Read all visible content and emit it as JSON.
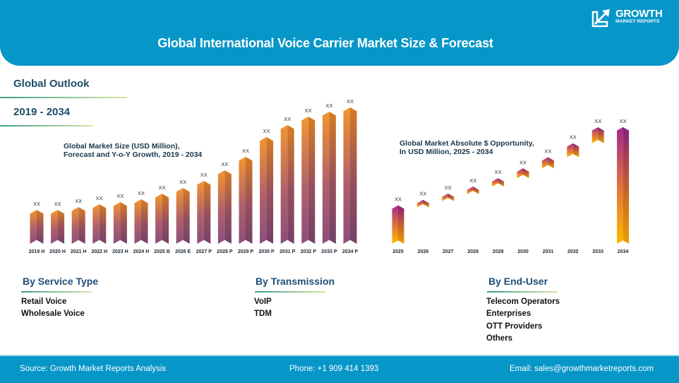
{
  "header": {
    "title": "Global International Voice Carrier Market Size & Forecast",
    "logo_line1": "GROWTH",
    "logo_line2": "MARKET REPORTS",
    "logo_icon": "growth-arrow-icon"
  },
  "outlook": {
    "label": "Global Outlook",
    "period": "2019 - 2034"
  },
  "chart_data": [
    {
      "type": "bar",
      "title": "Global Market Size (USD Million), Forecast and Y-o-Y Growth, 2019 - 2034",
      "title_line1": "Global Market Size (USD Million),",
      "title_line2": "Forecast and Y-o-Y Growth, 2019 - 2034",
      "xlabel": "",
      "ylabel": "",
      "categories": [
        "2019 H",
        "2020 H",
        "2021 H",
        "2022 H",
        "2023 H",
        "2024 H",
        "2025 B",
        "2026 E",
        "2027 P",
        "2028 P",
        "2029 P",
        "2030 P",
        "2031 P",
        "2032 P",
        "2033 P",
        "2034 P"
      ],
      "values": [
        48,
        48,
        52,
        56,
        59,
        63,
        71,
        79,
        89,
        104,
        123,
        151,
        168,
        180,
        187,
        193
      ],
      "value_scale_note": "relative bar heights (values not printed)",
      "data_labels": [
        "XX",
        "XX",
        "XX",
        "XX",
        "XX",
        "XX",
        "XX",
        "XX",
        "XX",
        "XX",
        "XX",
        "XX",
        "XX",
        "XX",
        "XX",
        "XX"
      ],
      "ylim": [
        0,
        200
      ],
      "grid": false,
      "legend": "none",
      "colors": {
        "top": "#f0922c",
        "bottom": "#8e4f7a"
      }
    },
    {
      "type": "bar",
      "subtype": "waterfall",
      "title": "Global Market Absolute $ Opportunity, In USD Million, 2025 - 2034",
      "title_line1": "Global Market Absolute $ Opportunity,",
      "title_line2": "In USD Million, 2025 - 2034",
      "xlabel": "",
      "ylabel": "",
      "categories": [
        "2025",
        "2026",
        "2027",
        "2028",
        "2029",
        "2030",
        "2031",
        "2032",
        "2033",
        "2034"
      ],
      "series": [
        {
          "name": "base",
          "values": [
            0,
            55,
            63,
            72,
            82,
            94,
            108,
            124,
            144,
            0
          ]
        },
        {
          "name": "increment",
          "values": [
            55,
            8,
            9,
            10,
            12,
            14,
            16,
            20,
            23,
            167
          ]
        }
      ],
      "data_labels": [
        "XX",
        "XX",
        "XX",
        "XX",
        "XX",
        "XX",
        "XX",
        "XX",
        "XX",
        "XX"
      ],
      "ylim": [
        0,
        170
      ],
      "grid": false,
      "legend": "none",
      "colors": {
        "top": "#a0288c",
        "bottom": "#ffb400"
      }
    }
  ],
  "segments": [
    {
      "title": "By Service Type",
      "items": [
        "Retail Voice",
        "Wholesale Voice"
      ]
    },
    {
      "title": "By Transmission",
      "items": [
        "VoIP",
        "TDM"
      ]
    },
    {
      "title": "By End-User",
      "items": [
        "Telecom Operators",
        "Enterprises",
        "OTT Providers",
        "Others"
      ]
    }
  ],
  "footer": {
    "source": "Source: Growth Market Reports Analysis",
    "phone": "Phone: +1 909 414 1393",
    "email": "Email: sales@growthmarketreports.com"
  },
  "colors": {
    "brand_blue": "#0796c8",
    "heading_dark": "#1e4d66",
    "segment_title": "#1f4e79"
  }
}
